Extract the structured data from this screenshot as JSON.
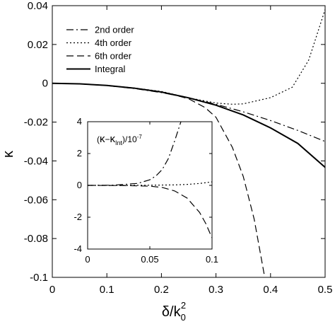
{
  "chart_data": [
    {
      "panel": "main",
      "type": "line",
      "xlabel": "δ/k",
      "xlabel_sub": "0",
      "xlabel_sup": "2",
      "ylabel": "κ",
      "xlim": [
        0,
        0.5
      ],
      "ylim": [
        -0.1,
        0.04
      ],
      "grid": false,
      "legend_position": "top-left",
      "x_ticks": [
        0,
        0.1,
        0.2,
        0.3,
        0.4,
        0.5
      ],
      "x_tick_labels": [
        "0",
        "0.1",
        "0.2",
        "0.3",
        "0.4",
        "0.5"
      ],
      "y_ticks": [
        0.04,
        0.02,
        0,
        -0.02,
        -0.04,
        -0.06,
        -0.08,
        -0.1
      ],
      "y_tick_labels": [
        "0.04",
        "0.02",
        "0",
        "-0.02",
        "-0.04",
        "-0.06",
        "-0.08",
        "-0.1"
      ],
      "series": [
        {
          "name": "2nd order",
          "dash": "dashdot",
          "x": [
            0,
            0.05,
            0.1,
            0.15,
            0.2,
            0.25,
            0.3,
            0.35,
            0.4,
            0.45,
            0.5
          ],
          "y": [
            0,
            -0.0003,
            -0.0012,
            -0.0027,
            -0.0048,
            -0.0075,
            -0.0108,
            -0.0147,
            -0.0192,
            -0.0243,
            -0.03
          ]
        },
        {
          "name": "4th order",
          "dash": "dot",
          "x": [
            0,
            0.05,
            0.1,
            0.15,
            0.2,
            0.25,
            0.3,
            0.33,
            0.35,
            0.4,
            0.44,
            0.47,
            0.5
          ],
          "y": [
            0,
            -0.0003,
            -0.0011,
            -0.0024,
            -0.0042,
            -0.0075,
            -0.0102,
            -0.0108,
            -0.0106,
            -0.0074,
            -0.002,
            0.012,
            0.038
          ]
        },
        {
          "name": "6th order",
          "dash": "dash",
          "x": [
            0,
            0.05,
            0.1,
            0.15,
            0.2,
            0.23,
            0.25,
            0.28,
            0.3,
            0.33,
            0.35,
            0.37,
            0.39
          ],
          "y": [
            0,
            -0.0003,
            -0.0011,
            -0.0025,
            -0.0046,
            -0.0065,
            -0.008,
            -0.0125,
            -0.0175,
            -0.033,
            -0.048,
            -0.07,
            -0.101
          ]
        },
        {
          "name": "Integral",
          "dash": "solid",
          "x": [
            0,
            0.05,
            0.1,
            0.15,
            0.2,
            0.25,
            0.3,
            0.35,
            0.4,
            0.45,
            0.5
          ],
          "y": [
            0,
            -0.0003,
            -0.0011,
            -0.0025,
            -0.0045,
            -0.0075,
            -0.0113,
            -0.0163,
            -0.023,
            -0.031,
            -0.0433
          ]
        }
      ]
    },
    {
      "panel": "inset",
      "type": "line",
      "annotation": {
        "open": "(",
        "kappa": "κ",
        "minus": "−",
        "kappa2": "κ",
        "sub": "Int",
        "close": ")/10",
        "sup": "-7"
      },
      "xlim": [
        0,
        0.1
      ],
      "ylim": [
        -4,
        4
      ],
      "x_ticks": [
        0,
        0.05,
        0.1
      ],
      "x_tick_labels": [
        "0",
        "0.05",
        "0.1"
      ],
      "y_ticks": [
        4,
        2,
        0,
        -2,
        -4
      ],
      "y_tick_labels": [
        "4",
        "2",
        "0",
        "-2",
        "-4"
      ],
      "series": [
        {
          "ref": "2nd order",
          "dash": "dashdot",
          "x": [
            0,
            0.02,
            0.04,
            0.05,
            0.055,
            0.06,
            0.065,
            0.07,
            0.075
          ],
          "y": [
            0,
            0.01,
            0.12,
            0.35,
            0.6,
            1.0,
            1.7,
            2.8,
            4.0
          ]
        },
        {
          "ref": "4th order",
          "dash": "dot",
          "x": [
            0,
            0.03,
            0.05,
            0.07,
            0.08,
            0.09,
            0.1
          ],
          "y": [
            0,
            0,
            0.01,
            0.03,
            0.06,
            0.12,
            0.22
          ]
        },
        {
          "ref": "6th order",
          "dash": "dash",
          "x": [
            0,
            0.03,
            0.05,
            0.06,
            0.07,
            0.08,
            0.09,
            0.095,
            0.1
          ],
          "y": [
            0,
            -0.01,
            -0.05,
            -0.13,
            -0.35,
            -0.8,
            -1.7,
            -2.4,
            -3.3
          ]
        }
      ]
    }
  ]
}
